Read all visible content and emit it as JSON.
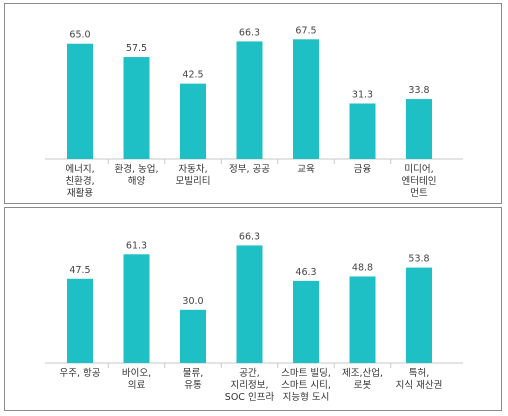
{
  "chart_data": [
    {
      "type": "bar",
      "categories": [
        "에너지,\n친환경,\n재활용",
        "환경, 농업,\n해양",
        "자동차,\n모빌리티",
        "정부, 공공",
        "교육",
        "금융",
        "미디어,\n엔터테인\n먼트"
      ],
      "values": [
        65.0,
        57.5,
        42.5,
        66.3,
        67.5,
        31.3,
        33.8
      ],
      "value_labels": [
        "65.0",
        "57.5",
        "42.5",
        "66.3",
        "67.5",
        "31.3",
        "33.8"
      ],
      "ylim": [
        0,
        75
      ],
      "grid": false,
      "bar_color": "#1fbfc6"
    },
    {
      "type": "bar",
      "categories": [
        "우주, 항공",
        "바이오,\n의료",
        "물류,\n유통",
        "공간,\n지리정보,\nSOC 인프라",
        "스마트 빌딩,\n스마트 시티,\n지능형 도시",
        "제조,산업,\n로봇",
        "특허,\n지식 재산권"
      ],
      "values": [
        47.5,
        61.3,
        30.0,
        66.3,
        46.3,
        48.8,
        53.8
      ],
      "value_labels": [
        "47.5",
        "61.3",
        "30.0",
        "66.3",
        "46.3",
        "48.8",
        "53.8"
      ],
      "ylim": [
        0,
        75
      ],
      "grid": false,
      "bar_color": "#1fbfc6"
    }
  ]
}
